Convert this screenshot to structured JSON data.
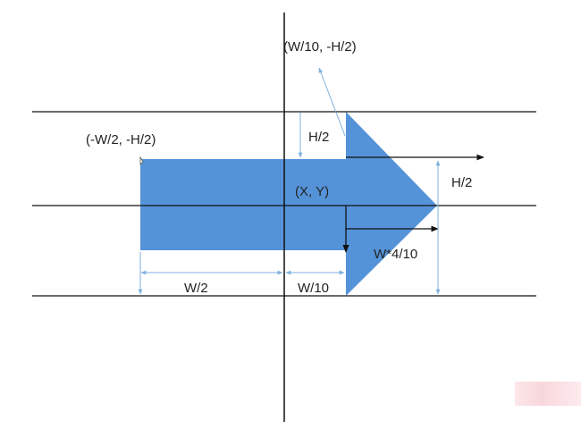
{
  "colors": {
    "arrow_fill": "#5593d9",
    "line": "#111111",
    "dim": "#7fb1dd",
    "annotation": "#5b87b8"
  },
  "labels": {
    "top_point": "(W/10, -H/2)",
    "left_point": "(-W/2, -H/2)",
    "center": "(X, Y)",
    "half_h_left": "H/2",
    "half_h_right": "H/2",
    "head_width": "W*4/10",
    "half_w": "W/2",
    "tenth_w": "W/10"
  }
}
